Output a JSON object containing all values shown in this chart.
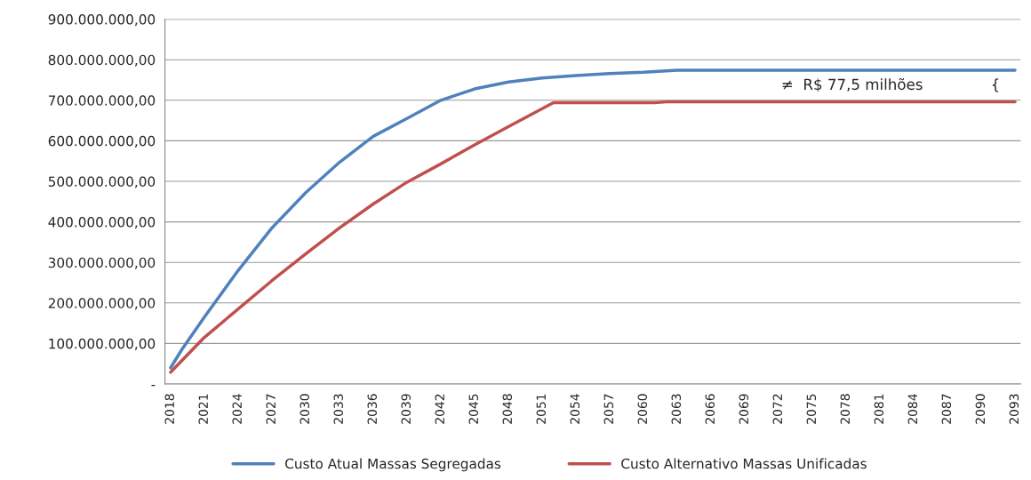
{
  "chart_data": {
    "type": "line",
    "series": [
      {
        "name": "Custo Atual Massas Segregadas",
        "color": "#4f81bd",
        "x": [
          2018,
          2019,
          2021,
          2024,
          2027,
          2030,
          2033,
          2036,
          2039,
          2042,
          2045,
          2048,
          2051,
          2054,
          2057,
          2060,
          2063,
          2093
        ],
        "values": [
          40000000,
          85000000,
          165000000,
          280000000,
          385000000,
          472000000,
          547000000,
          611000000,
          655000000,
          700000000,
          728000000,
          745000000,
          755000000,
          761000000,
          766000000,
          769000000,
          774000000,
          774000000
        ]
      },
      {
        "name": "Custo Alternativo Massas Unificadas",
        "color": "#c0504d",
        "x": [
          2018,
          2021,
          2024,
          2027,
          2030,
          2033,
          2036,
          2039,
          2042,
          2045,
          2048,
          2052,
          2061,
          2062,
          2093
        ],
        "values": [
          29000000,
          115000000,
          185000000,
          255000000,
          321000000,
          385000000,
          444000000,
          498000000,
          543000000,
          590000000,
          635000000,
          694000000,
          694000000,
          696000000,
          696000000
        ]
      }
    ],
    "xlim": [
      2017.5,
      2093.5
    ],
    "xticks": [
      2018,
      2021,
      2024,
      2027,
      2030,
      2033,
      2036,
      2039,
      2042,
      2045,
      2048,
      2051,
      2054,
      2057,
      2060,
      2063,
      2066,
      2069,
      2072,
      2075,
      2078,
      2081,
      2084,
      2087,
      2090,
      2093
    ],
    "ylim": [
      0,
      900000000
    ],
    "yticks": [
      {
        "value": 0,
        "label": "-"
      },
      {
        "value": 100000000,
        "label": "100.000.000,00"
      },
      {
        "value": 200000000,
        "label": "200.000.000,00"
      },
      {
        "value": 300000000,
        "label": "300.000.000,00"
      },
      {
        "value": 400000000,
        "label": "400.000.000,00"
      },
      {
        "value": 500000000,
        "label": "500.000.000,00"
      },
      {
        "value": 600000000,
        "label": "600.000.000,00"
      },
      {
        "value": 700000000,
        "label": "700.000.000,00"
      },
      {
        "value": 800000000,
        "label": "800.000.000,00"
      },
      {
        "value": 900000000,
        "label": "900.000.000,00"
      }
    ],
    "annotations": [
      "≠  R$ 77,5 milhões",
      "{"
    ],
    "grid": "y",
    "legend": "bottom",
    "marker": "none",
    "line_style": "solid"
  }
}
